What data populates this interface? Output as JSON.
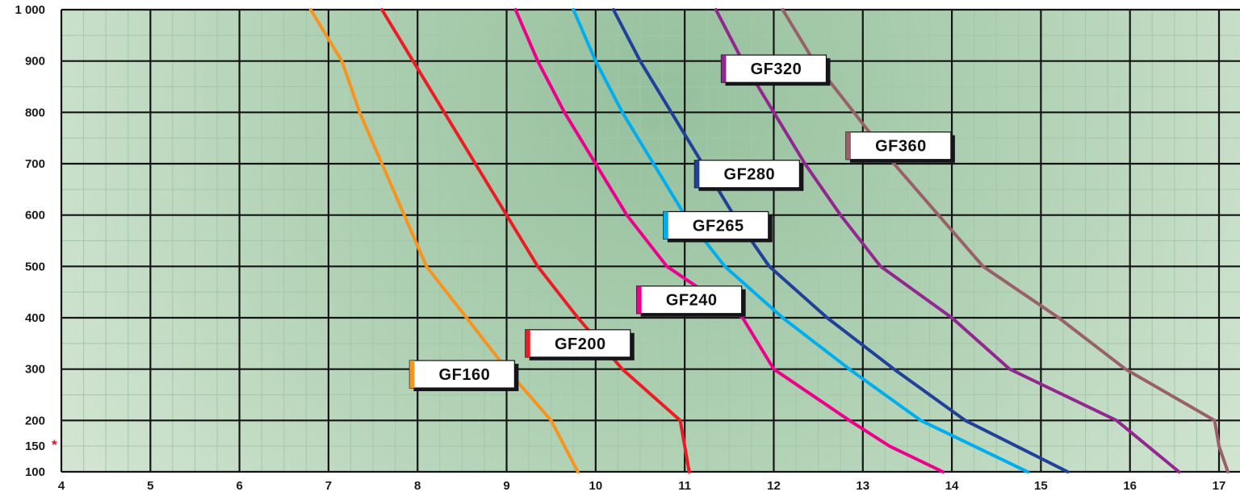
{
  "chart_data": {
    "type": "line",
    "title": "",
    "xlabel": "",
    "ylabel": "",
    "x_axis": {
      "min": 4,
      "max": 17,
      "ticks": [
        4,
        5,
        6,
        7,
        8,
        9,
        10,
        11,
        12,
        13,
        14,
        15,
        16,
        17
      ]
    },
    "y_axis": {
      "min": 100,
      "max": 1000,
      "ticks": [
        {
          "value": 1000,
          "label": "1 000",
          "major": true
        },
        {
          "value": 900,
          "label": "900",
          "major": true
        },
        {
          "value": 800,
          "label": "800",
          "major": true
        },
        {
          "value": 700,
          "label": "700",
          "major": true
        },
        {
          "value": 600,
          "label": "600",
          "major": true
        },
        {
          "value": 500,
          "label": "500",
          "major": true
        },
        {
          "value": 400,
          "label": "400",
          "major": true
        },
        {
          "value": 300,
          "label": "300",
          "major": true
        },
        {
          "value": 200,
          "label": "200",
          "major": true
        },
        {
          "value": 150,
          "label": "150",
          "major": false,
          "asterisk": true
        },
        {
          "value": 100,
          "label": "100",
          "major": true
        }
      ]
    },
    "grid": {
      "major": true,
      "minor_x_step": 0.25,
      "minor_y_step": 50
    },
    "legend_position": "on-curve-labels",
    "colors": {
      "minor_grid": "#a4c7a9",
      "major_grid": "#141414",
      "tick_text": "#1a1a1a",
      "asterisk": "#e8112d",
      "label_box_fill": "#ffffff",
      "label_box_shadow": "#15151b",
      "plot_bg_center": "#95c09d",
      "plot_bg_mid": "#b0d1b4",
      "plot_bg_edge": "#d4e6d3"
    },
    "series": [
      {
        "name": "GF160",
        "color": "#F7941E",
        "label_pos": {
          "x": 8.5,
          "y": 290
        },
        "points": [
          [
            6.8,
            1000
          ],
          [
            7.15,
            900
          ],
          [
            7.35,
            800
          ],
          [
            7.6,
            700
          ],
          [
            7.85,
            600
          ],
          [
            8.1,
            500
          ],
          [
            8.55,
            400
          ],
          [
            9.0,
            300
          ],
          [
            9.5,
            200
          ],
          [
            9.8,
            100
          ]
        ]
      },
      {
        "name": "GF200",
        "color": "#EC1C24",
        "label_pos": {
          "x": 9.8,
          "y": 350
        },
        "points": [
          [
            7.6,
            1000
          ],
          [
            7.95,
            900
          ],
          [
            8.3,
            800
          ],
          [
            8.65,
            700
          ],
          [
            9.0,
            600
          ],
          [
            9.35,
            500
          ],
          [
            9.8,
            400
          ],
          [
            10.3,
            300
          ],
          [
            10.95,
            200
          ],
          [
            11.05,
            100
          ]
        ]
      },
      {
        "name": "GF240",
        "color": "#EC008C",
        "label_pos": {
          "x": 11.05,
          "y": 435
        },
        "points": [
          [
            9.1,
            1000
          ],
          [
            9.35,
            900
          ],
          [
            9.65,
            800
          ],
          [
            10.0,
            700
          ],
          [
            10.35,
            600
          ],
          [
            10.8,
            500
          ],
          [
            11.65,
            400
          ],
          [
            12.0,
            300
          ],
          [
            12.85,
            200
          ],
          [
            13.3,
            150
          ],
          [
            13.9,
            100
          ]
        ]
      },
      {
        "name": "GF265",
        "color": "#00AEEF",
        "label_pos": {
          "x": 11.35,
          "y": 580
        },
        "points": [
          [
            9.75,
            1000
          ],
          [
            10.0,
            900
          ],
          [
            10.3,
            800
          ],
          [
            10.65,
            700
          ],
          [
            11.0,
            600
          ],
          [
            11.45,
            500
          ],
          [
            12.1,
            400
          ],
          [
            12.85,
            300
          ],
          [
            13.65,
            200
          ],
          [
            14.85,
            100
          ]
        ]
      },
      {
        "name": "GF280",
        "color": "#21409A",
        "label_pos": {
          "x": 11.7,
          "y": 680
        },
        "points": [
          [
            10.2,
            1000
          ],
          [
            10.5,
            900
          ],
          [
            10.85,
            800
          ],
          [
            11.2,
            700
          ],
          [
            11.55,
            600
          ],
          [
            11.95,
            500
          ],
          [
            12.6,
            400
          ],
          [
            13.35,
            300
          ],
          [
            14.15,
            200
          ],
          [
            15.3,
            100
          ]
        ]
      },
      {
        "name": "GF320",
        "color": "#92278F",
        "label_pos": {
          "x": 12.0,
          "y": 885
        },
        "points": [
          [
            11.35,
            1000
          ],
          [
            11.65,
            900
          ],
          [
            12.0,
            800
          ],
          [
            12.35,
            700
          ],
          [
            12.75,
            600
          ],
          [
            13.2,
            500
          ],
          [
            14.0,
            400
          ],
          [
            14.65,
            300
          ],
          [
            15.85,
            200
          ],
          [
            16.55,
            100
          ]
        ]
      },
      {
        "name": "GF360",
        "color": "#99606A",
        "label_pos": {
          "x": 13.4,
          "y": 735
        },
        "points": [
          [
            12.1,
            1000
          ],
          [
            12.45,
            900
          ],
          [
            12.9,
            800
          ],
          [
            13.35,
            700
          ],
          [
            13.85,
            600
          ],
          [
            14.35,
            500
          ],
          [
            15.2,
            400
          ],
          [
            15.95,
            300
          ],
          [
            16.95,
            200
          ],
          [
            17.0,
            150
          ],
          [
            17.1,
            100
          ]
        ]
      }
    ]
  }
}
